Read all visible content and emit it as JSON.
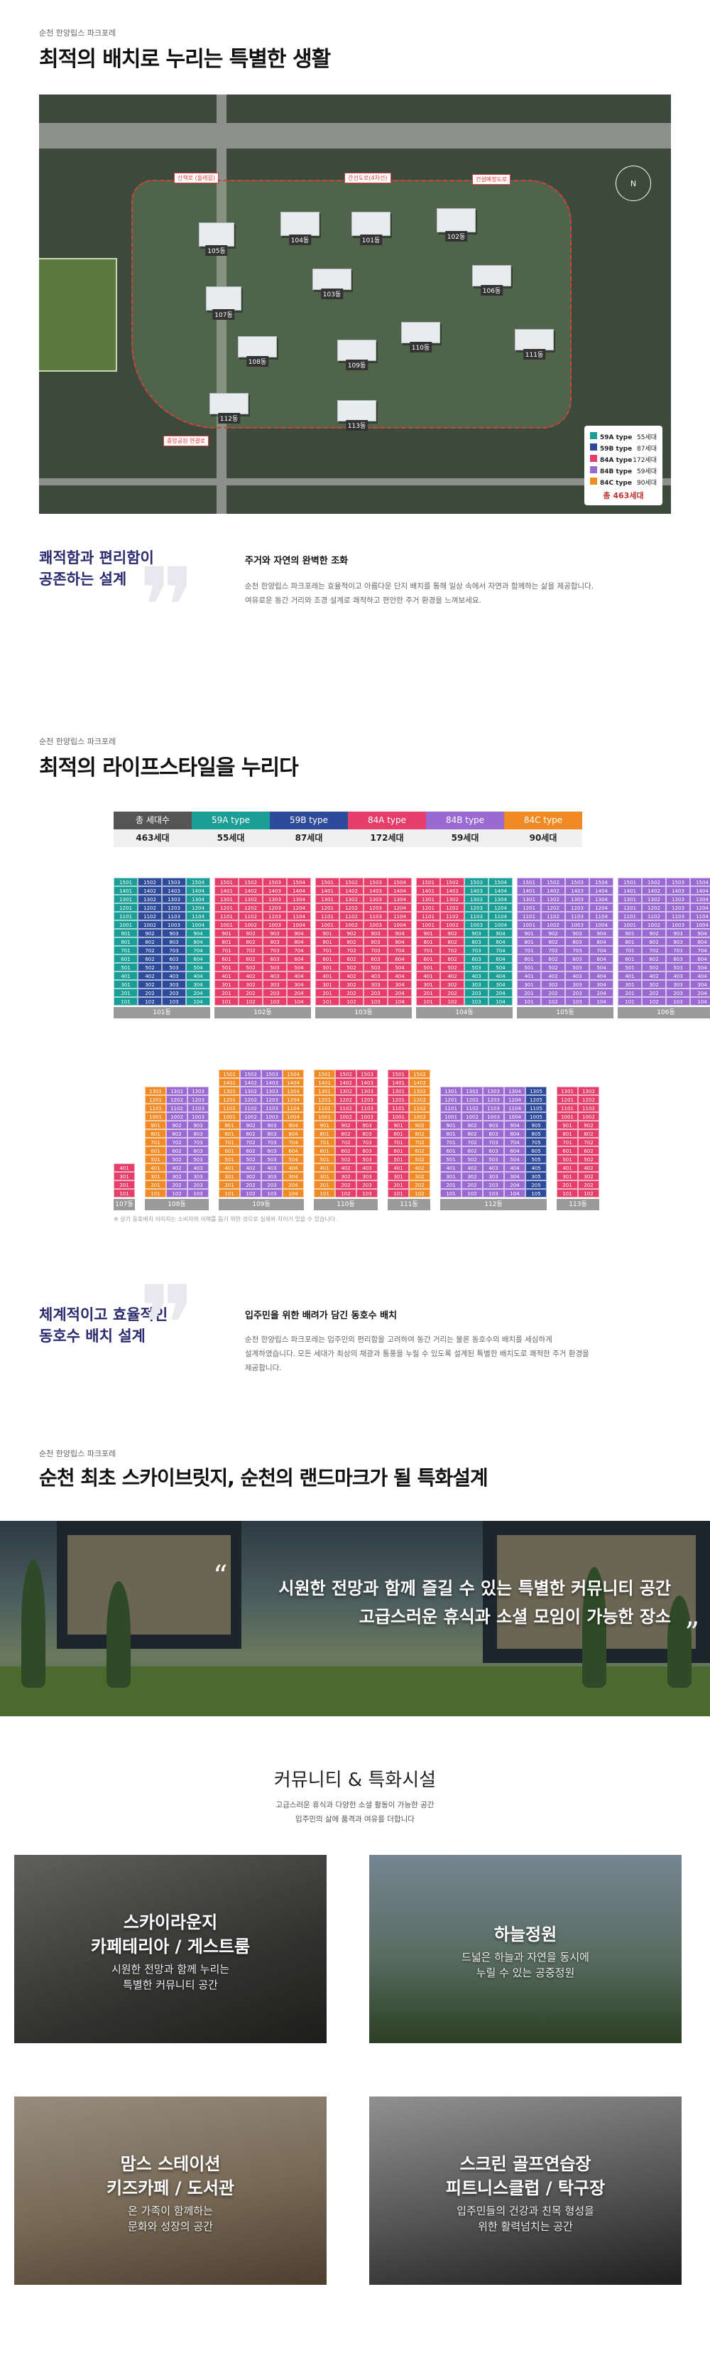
{
  "section1": {
    "kicker": "순천 한양립스 파크포레",
    "title": "최적의 배치로 누리는 특별한 생활",
    "siteplan": {
      "road_labels": [
        "산책로 (둘레길)",
        "간선도로(4차선)",
        "건설예정도로",
        "중앙공원 연결로"
      ],
      "buildings": [
        "105동",
        "104동",
        "101동",
        "102동",
        "103동",
        "106동",
        "107동",
        "108동",
        "109동",
        "110동",
        "111동",
        "112동",
        "113동"
      ],
      "legend": [
        {
          "label": "59A type",
          "count": "55세대",
          "color": "#1b9e96"
        },
        {
          "label": "59B type",
          "count": "87세대",
          "color": "#2d4b9a"
        },
        {
          "label": "84A type",
          "count": "172세대",
          "color": "#e53e6b"
        },
        {
          "label": "84B type",
          "count": "59세대",
          "color": "#9a6ad2"
        },
        {
          "label": "84C type",
          "count": "90세대",
          "color": "#f08a24"
        }
      ],
      "legend_total": "총 463세대",
      "compass": "N"
    }
  },
  "quote1": {
    "left_line1": "쾌적함과 편리함이",
    "left_line2": "공존하는 설계",
    "title": "주거와 자연의 완벽한 조화",
    "body1": "순천 한양립스 파크포레는 효율적이고 아름다운 단지 배치를 통해 일상 속에서 자연과 함께하는 삶을 제공합니다.",
    "body2": "여유로운 동간 거리와 조경 설계로 쾌적하고 편안한 주거 환경을 느껴보세요."
  },
  "section2": {
    "kicker": "순천 한양립스 파크포레",
    "title": "최적의 라이프스타일을 누리다",
    "types": [
      {
        "name": "총 세대수",
        "count": "463세대",
        "color": "#555555"
      },
      {
        "name": "59A type",
        "count": "55세대",
        "color": "#1b9e96"
      },
      {
        "name": "59B type",
        "count": "87세대",
        "color": "#2d4b9a"
      },
      {
        "name": "84A type",
        "count": "172세대",
        "color": "#e53e6b"
      },
      {
        "name": "84B type",
        "count": "59세대",
        "color": "#9a6ad2"
      },
      {
        "name": "84C type",
        "count": "90세대",
        "color": "#f08a24"
      }
    ],
    "stacks_top": [
      {
        "label": "101동",
        "colors": [
          "#1b9e96",
          "#2d4b9a",
          "#2d4b9a",
          "#1b9e96"
        ]
      },
      {
        "label": "102동",
        "colors": [
          "#e53e6b",
          "#e53e6b",
          "#e53e6b",
          "#e53e6b"
        ]
      },
      {
        "label": "103동",
        "colors": [
          "#e53e6b",
          "#e53e6b",
          "#e53e6b",
          "#e53e6b"
        ]
      },
      {
        "label": "104동",
        "colors": [
          "#e53e6b",
          "#e53e6b",
          "#1b9e96",
          "#1b9e96"
        ]
      },
      {
        "label": "105동",
        "colors": [
          "#9a6ad2",
          "#9a6ad2",
          "#9a6ad2",
          "#9a6ad2"
        ]
      },
      {
        "label": "106동",
        "colors": [
          "#9a6ad2",
          "#9a6ad2",
          "#9a6ad2",
          "#9a6ad2"
        ]
      }
    ],
    "stacks_bottom": [
      {
        "label": "107동",
        "colors": [
          "#e53e6b"
        ]
      },
      {
        "label": "108동",
        "colors": [
          "#f08a24",
          "#9a6ad2",
          "#9a6ad2"
        ]
      },
      {
        "label": "109동",
        "colors": [
          "#f08a24",
          "#9a6ad2",
          "#9a6ad2",
          "#f08a24"
        ]
      },
      {
        "label": "110동",
        "colors": [
          "#f08a24",
          "#e53e6b",
          "#e53e6b"
        ]
      },
      {
        "label": "111동",
        "colors": [
          "#e53e6b",
          "#f08a24"
        ]
      },
      {
        "label": "112동",
        "colors": [
          "#9a6ad2",
          "#9a6ad2",
          "#9a6ad2",
          "#9a6ad2",
          "#2d4b9a"
        ]
      },
      {
        "label": "113동",
        "colors": [
          "#e53e6b",
          "#e53e6b"
        ]
      }
    ],
    "footnote": "※ 상기 동호배치 이미지는 소비자의 이해를 돕기 위한 것으로 실제와 차이가 있을 수 있습니다."
  },
  "quote2": {
    "left_line1": "체계적이고 효율적인",
    "left_line2": "동호수 배치 설계",
    "title": "입주민을 위한 배려가 담긴 동호수 배치",
    "body1": "순천 한양립스 파크포레는 입주민의 편리함을 고려하여 동간 거리는 물론 동호수의 배치를 세심하게",
    "body2": "설계하였습니다. 모든 세대가 최상의 채광과 통풍을 누릴 수 있도록 설계된 특별한 배치도로 쾌적한 주거 환경을",
    "body3": "제공합니다."
  },
  "section3": {
    "kicker": "순천 한양립스 파크포레",
    "title": "순천 최초 스카이브릿지, 순천의 랜드마크가 될 특화설계",
    "banner_line1": "시원한 전망과 함께 즐길 수 있는 특별한 커뮤니티 공간",
    "banner_line2": "고급스러운 휴식과 소셜 모임이 가능한 장소"
  },
  "community": {
    "title": "커뮤니티 & 특화시설",
    "sub1": "고급스러운 휴식과 다양한 소셜 활동이 가능한 공간",
    "sub2": "입주민의 삶에 품격과 여유를 더합니다",
    "cards": [
      {
        "title1": "스카이라운지",
        "title2": "카페테리아 / 게스트룸",
        "desc1": "시원한 전망과 함께 누리는",
        "desc2": "특별한 커뮤니티 공간"
      },
      {
        "title1": "하늘정원",
        "title2": "",
        "desc1": "드넓은 하늘과 자연을 동시에",
        "desc2": "누릴 수 있는 공중정원"
      },
      {
        "title1": "맘스 스테이션",
        "title2": "키즈카페 / 도서관",
        "desc1": "온 가족이 함께하는",
        "desc2": "문화와 성장의 공간"
      },
      {
        "title1": "스크린 골프연습장",
        "title2": "피트니스클럽 / 탁구장",
        "desc1": "입주민들의 건강과 친목 형성을",
        "desc2": "위한 활력넘치는 공간"
      }
    ]
  }
}
